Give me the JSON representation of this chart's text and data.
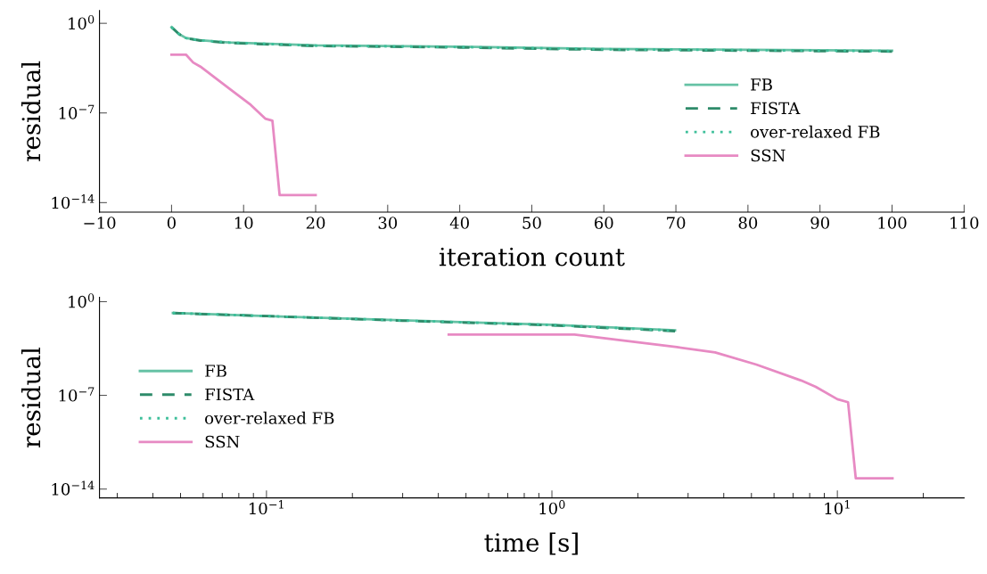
{
  "chart_data": [
    {
      "type": "line",
      "xlabel": "iteration count",
      "ylabel": "residual",
      "log": "y",
      "legend": "right",
      "grid": false,
      "xlim": [
        -10,
        110
      ],
      "xticks": [
        {
          "value": -10,
          "label": "−10"
        },
        0,
        10,
        20,
        30,
        40,
        50,
        60,
        70,
        80,
        90,
        100,
        110
      ],
      "ylim": [
        1.8e-15,
        10
      ],
      "yticks": [
        {
          "value": 1,
          "label": "10$^{0}$"
        },
        {
          "value": 1e-07,
          "label": "10$^{−7}$"
        },
        {
          "value": 1e-14,
          "label": "10$^{−14}$"
        }
      ],
      "series": [
        {
          "name": "FB",
          "color": "#66c2a5",
          "line_style": "solid",
          "x": [
            0,
            1,
            2,
            4,
            8,
            20,
            40,
            60,
            100
          ],
          "values": [
            0.5,
            0.15,
            0.071,
            0.048,
            0.032,
            0.019,
            0.015,
            0.01,
            0.0072
          ]
        },
        {
          "name": "FISTA",
          "color": "#2e8b6a",
          "line_style": "dashed",
          "x": [
            0,
            1,
            2,
            4,
            8,
            20,
            40,
            60,
            100
          ],
          "values": [
            0.5,
            0.15,
            0.068,
            0.045,
            0.029,
            0.017,
            0.013,
            0.0085,
            0.0063
          ]
        },
        {
          "name": "over-relaxed FB",
          "color": "#3dbf9a",
          "line_style": "dotted",
          "x": [
            0,
            1,
            2,
            4,
            8,
            20,
            40,
            60,
            100
          ],
          "values": [
            0.5,
            0.15,
            0.07,
            0.047,
            0.031,
            0.018,
            0.014,
            0.0095,
            0.0068
          ]
        },
        {
          "name": "SSN",
          "color": "#e78ac3",
          "line_style": "solid",
          "x": [
            0,
            2,
            3,
            4,
            11,
            13,
            14,
            15,
            20
          ],
          "values": [
            0.0036,
            0.0036,
            0.00087,
            0.00042,
            4.3e-07,
            3.6e-08,
            2.5e-08,
            3.9e-14,
            3.9e-14
          ]
        }
      ]
    },
    {
      "type": "line",
      "xlabel": "time [s]",
      "ylabel": "residual",
      "log": "xy",
      "legend": "left",
      "grid": false,
      "xlim": [
        0.026,
        27.8
      ],
      "xticks": [
        {
          "value": 0.1,
          "label": "10$^{−1}$"
        },
        {
          "value": 1,
          "label": "10$^{0}$"
        },
        {
          "value": 10,
          "label": "10$^{1}$"
        }
      ],
      "ylim": [
        2.2e-15,
        2.1
      ],
      "yticks": [
        {
          "value": 1,
          "label": "10$^{0}$"
        },
        {
          "value": 1e-07,
          "label": "10$^{−7}$"
        },
        {
          "value": 1e-14,
          "label": "10$^{−14}$"
        }
      ],
      "series": [
        {
          "name": "FB",
          "color": "#66c2a5",
          "line_style": "solid",
          "x": [
            0.047,
            0.1,
            0.3,
            1,
            2.7
          ],
          "values": [
            0.14,
            0.085,
            0.04,
            0.019,
            0.0072
          ]
        },
        {
          "name": "FISTA",
          "color": "#2e8b6a",
          "line_style": "dashed",
          "x": [
            0.047,
            0.1,
            0.3,
            1,
            2.7
          ],
          "values": [
            0.14,
            0.083,
            0.038,
            0.017,
            0.0063
          ]
        },
        {
          "name": "over-relaxed FB",
          "color": "#3dbf9a",
          "line_style": "dotted",
          "x": [
            0.047,
            0.1,
            0.3,
            1,
            2.7
          ],
          "values": [
            0.14,
            0.084,
            0.039,
            0.018,
            0.0068
          ]
        },
        {
          "name": "SSN",
          "color": "#e78ac3",
          "line_style": "solid",
          "x": [
            0.435,
            1.2,
            2.74,
            3.73,
            5.2,
            7.46,
            8.4,
            10,
            10.9,
            11.6,
            15.6
          ],
          "values": [
            0.0035,
            0.0035,
            0.0004,
            0.00016,
            2e-05,
            1.3e-06,
            4.3e-07,
            5.2e-08,
            3.1e-08,
            6.3e-14,
            6.3e-14
          ]
        }
      ]
    }
  ]
}
